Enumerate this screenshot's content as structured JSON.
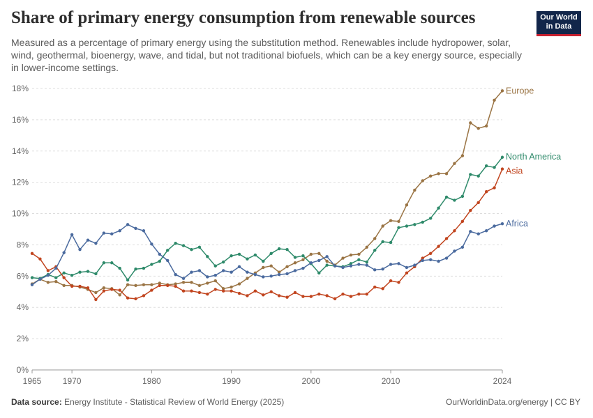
{
  "header": {
    "title": "Share of primary energy consumption from renewable sources",
    "subtitle": "Measured as a percentage of primary energy using the substitution method. Renewables include hydropower, solar, wind, geothermal, bioenergy, wave, and tidal, but not traditional biofuels, which can be a key energy source, especially in lower-income settings.",
    "logo_line1": "Our World",
    "logo_line2": "in Data"
  },
  "footer": {
    "source_label": "Data source:",
    "source_text": "Energy Institute - Statistical Review of World Energy (2025)",
    "credit": "OurWorldinData.org/energy | CC BY"
  },
  "colors": {
    "Europe": "#9a7444",
    "North America": "#2e8a6a",
    "Asia": "#c1441e",
    "Africa": "#4a6a9e",
    "axis": "#999999",
    "grid": "#dddddd"
  },
  "chart_data": {
    "type": "line",
    "xlabel": "",
    "ylabel": "",
    "ylim": [
      0,
      18
    ],
    "y_ticks": [
      "0%",
      "2%",
      "4%",
      "6%",
      "8%",
      "10%",
      "12%",
      "14%",
      "16%",
      "18%"
    ],
    "y_tick_values": [
      0,
      2,
      4,
      6,
      8,
      10,
      12,
      14,
      16,
      18
    ],
    "x_ticks": [
      "1965",
      "1970",
      "1980",
      "1990",
      "2000",
      "2010",
      "2024"
    ],
    "x_tick_values": [
      1965,
      1970,
      1980,
      1990,
      2000,
      2010,
      2024
    ],
    "xlim": [
      1965,
      2024
    ],
    "grid": "horizontal-dashed",
    "legend": "line-end labels",
    "x": [
      1965,
      1966,
      1967,
      1968,
      1969,
      1970,
      1971,
      1972,
      1973,
      1974,
      1975,
      1976,
      1977,
      1978,
      1979,
      1980,
      1981,
      1982,
      1983,
      1984,
      1985,
      1986,
      1987,
      1988,
      1989,
      1990,
      1991,
      1992,
      1993,
      1994,
      1995,
      1996,
      1997,
      1998,
      1999,
      2000,
      2001,
      2002,
      2003,
      2004,
      2005,
      2006,
      2007,
      2008,
      2009,
      2010,
      2011,
      2012,
      2013,
      2014,
      2015,
      2016,
      2017,
      2018,
      2019,
      2020,
      2021,
      2022,
      2023,
      2024
    ],
    "series": [
      {
        "name": "Europe",
        "values": [
          5.5,
          5.8,
          5.6,
          5.65,
          5.4,
          5.4,
          5.3,
          5.15,
          4.95,
          5.25,
          5.2,
          4.8,
          5.45,
          5.4,
          5.45,
          5.45,
          5.55,
          5.45,
          5.5,
          5.6,
          5.6,
          5.4,
          5.55,
          5.7,
          5.2,
          5.3,
          5.5,
          5.85,
          6.2,
          6.55,
          6.65,
          6.25,
          6.6,
          6.85,
          7.05,
          7.4,
          7.45,
          6.95,
          6.7,
          7.15,
          7.35,
          7.4,
          7.85,
          8.4,
          9.2,
          9.55,
          9.5,
          10.55,
          11.5,
          12.1,
          12.4,
          12.55,
          12.55,
          13.2,
          13.7,
          15.8,
          15.45,
          15.6,
          17.25,
          17.85
        ]
      },
      {
        "name": "North America",
        "values": [
          5.9,
          5.85,
          6.1,
          5.9,
          6.2,
          6.05,
          6.25,
          6.3,
          6.15,
          6.85,
          6.85,
          6.5,
          5.75,
          6.45,
          6.5,
          6.75,
          6.95,
          7.65,
          8.1,
          7.95,
          7.7,
          7.85,
          7.25,
          6.65,
          6.9,
          7.3,
          7.4,
          7.1,
          7.35,
          6.95,
          7.45,
          7.75,
          7.7,
          7.2,
          7.3,
          6.8,
          6.2,
          6.7,
          6.65,
          6.6,
          6.8,
          7.05,
          6.9,
          7.65,
          8.2,
          8.15,
          9.1,
          9.2,
          9.3,
          9.45,
          9.7,
          10.35,
          11.05,
          10.85,
          11.1,
          12.5,
          12.4,
          13.05,
          12.95,
          13.6
        ]
      },
      {
        "name": "Asia",
        "values": [
          7.45,
          7.1,
          6.35,
          6.6,
          5.9,
          5.35,
          5.35,
          5.25,
          4.5,
          5.05,
          5.15,
          5.1,
          4.6,
          4.55,
          4.75,
          5.1,
          5.4,
          5.4,
          5.35,
          5.05,
          5.05,
          4.95,
          4.85,
          5.15,
          5.05,
          5.05,
          4.9,
          4.75,
          5.05,
          4.8,
          5.0,
          4.75,
          4.65,
          4.95,
          4.7,
          4.7,
          4.85,
          4.75,
          4.55,
          4.85,
          4.7,
          4.85,
          4.85,
          5.3,
          5.2,
          5.7,
          5.6,
          6.2,
          6.6,
          7.15,
          7.45,
          7.9,
          8.4,
          8.9,
          9.5,
          10.2,
          10.7,
          11.4,
          11.65,
          12.85
        ]
      },
      {
        "name": "Africa",
        "values": [
          5.45,
          5.8,
          6.05,
          6.5,
          7.5,
          8.65,
          7.7,
          8.3,
          8.1,
          8.75,
          8.7,
          8.9,
          9.3,
          9.05,
          8.9,
          8.05,
          7.4,
          7.0,
          6.1,
          5.85,
          6.25,
          6.35,
          5.95,
          6.05,
          6.35,
          6.25,
          6.6,
          6.25,
          6.1,
          5.95,
          6.0,
          6.1,
          6.15,
          6.35,
          6.5,
          6.85,
          7.0,
          7.25,
          6.65,
          6.55,
          6.65,
          6.75,
          6.7,
          6.4,
          6.45,
          6.75,
          6.8,
          6.55,
          6.7,
          7.0,
          7.05,
          6.95,
          7.15,
          7.6,
          7.85,
          8.85,
          8.7,
          8.9,
          9.2,
          9.35
        ]
      }
    ]
  }
}
